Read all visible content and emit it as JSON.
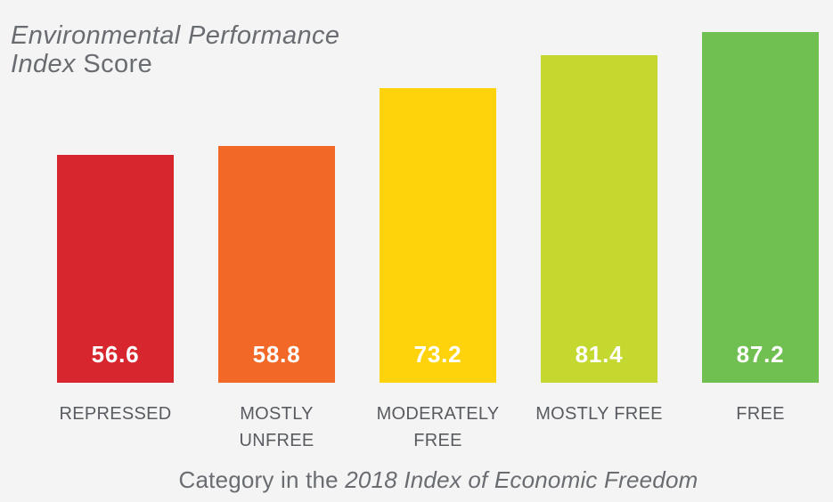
{
  "title": {
    "line1_italic": "Environmental Performance",
    "line2_italic": "Index",
    "line2_regular": " Score"
  },
  "caption": {
    "regular": "Category in the ",
    "italic": "2018 Index of Economic Freedom"
  },
  "colors": {
    "background": "#f4f4f5",
    "title_text": "#696c70",
    "category_label_text": "#585b60",
    "caption_text": "#696c70",
    "value_label_text": "#ffffff"
  },
  "chart_data": {
    "type": "bar",
    "title": "Environmental Performance Index Score",
    "xlabel": "Category in the 2018 Index of Economic Freedom",
    "ylabel": "Environmental Performance Index Score",
    "ylim": [
      0,
      100
    ],
    "grid": false,
    "legend": false,
    "axes_visible": false,
    "value_labels_position": "inside-bottom",
    "categories": [
      "REPRESSED",
      "MOSTLY UNFREE",
      "MODERATELY FREE",
      "MOSTLY FREE",
      "FREE"
    ],
    "values": [
      56.6,
      58.8,
      73.2,
      81.4,
      87.2
    ],
    "bars": [
      {
        "category_lines": [
          "REPRESSED"
        ],
        "value": 56.6,
        "value_label": "56.6",
        "color": "#d7262e"
      },
      {
        "category_lines": [
          "MOSTLY",
          "UNFREE"
        ],
        "value": 58.8,
        "value_label": "58.8",
        "color": "#f26927"
      },
      {
        "category_lines": [
          "MODERATELY",
          "FREE"
        ],
        "value": 73.2,
        "value_label": "73.2",
        "color": "#fed30b"
      },
      {
        "category_lines": [
          "MOSTLY FREE"
        ],
        "value": 81.4,
        "value_label": "81.4",
        "color": "#c4d82f"
      },
      {
        "category_lines": [
          "FREE"
        ],
        "value": 87.2,
        "value_label": "87.2",
        "color": "#6fc050"
      }
    ]
  }
}
